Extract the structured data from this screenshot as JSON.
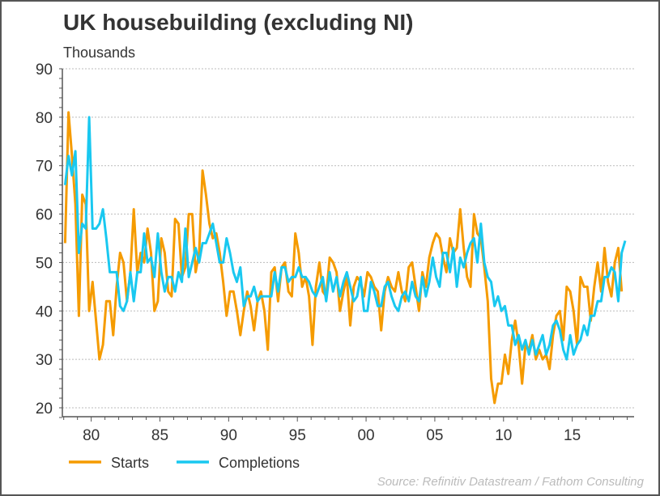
{
  "chart_data": {
    "type": "line",
    "title": "UK housebuilding (excluding NI)",
    "ylabel": "Thousands",
    "xlabel": "",
    "source": "Source: Refinitiv Datastream / Fathom Consulting",
    "ylim": [
      18,
      90
    ],
    "xlim": [
      1977.9,
      2019.5
    ],
    "yticks": [
      20,
      30,
      40,
      50,
      60,
      70,
      80,
      90
    ],
    "xticks": [
      {
        "value": 1980,
        "label": "80"
      },
      {
        "value": 1985,
        "label": "85"
      },
      {
        "value": 1990,
        "label": "90"
      },
      {
        "value": 1995,
        "label": "95"
      },
      {
        "value": 2000,
        "label": "00"
      },
      {
        "value": 2005,
        "label": "05"
      },
      {
        "value": 2010,
        "label": "10"
      },
      {
        "value": 2015,
        "label": "15"
      }
    ],
    "grid": "horizontal dotted",
    "legend_position": "bottom-left",
    "start": 1978.1,
    "frequency": "quarterly",
    "series": [
      {
        "name": "Starts",
        "color": "#f59b00",
        "values": [
          54,
          81,
          72,
          62,
          39,
          64,
          62,
          40,
          46,
          38,
          30,
          33,
          42,
          42,
          35,
          45,
          52,
          50,
          42,
          48,
          61,
          48,
          52,
          50,
          57,
          52,
          40,
          42,
          55,
          52,
          44,
          43,
          59,
          58,
          47,
          49,
          60,
          60,
          48,
          52,
          69,
          64,
          58,
          55,
          56,
          52,
          46,
          39,
          44,
          44,
          40,
          35,
          40,
          44,
          41,
          36,
          42,
          44,
          40,
          32,
          48,
          49,
          42,
          49,
          50,
          44,
          43,
          56,
          52,
          45,
          47,
          43,
          33,
          45,
          50,
          44,
          43,
          51,
          50,
          48,
          40,
          44,
          47,
          37,
          45,
          47,
          46,
          43,
          48,
          47,
          45,
          44,
          36,
          44,
          47,
          45,
          44,
          48,
          44,
          42,
          49,
          50,
          45,
          40,
          48,
          45,
          51,
          54,
          56,
          55,
          51,
          48,
          55,
          52,
          53,
          61,
          53,
          47,
          45,
          60,
          56,
          55,
          49,
          42,
          26,
          21,
          25,
          25,
          31,
          27,
          34,
          38,
          33,
          25,
          33,
          32,
          35,
          30,
          32,
          30,
          31,
          28,
          35,
          39,
          40,
          34,
          45,
          44,
          40,
          33,
          47,
          45,
          45,
          38,
          45,
          50,
          44,
          53,
          46,
          43,
          50,
          53,
          44
        ]
      },
      {
        "name": "Completions",
        "color": "#19c8f0",
        "values": [
          66,
          72,
          68,
          73,
          52,
          58,
          57,
          80,
          57,
          57,
          58,
          61,
          55,
          48,
          48,
          48,
          41,
          40,
          42,
          48,
          42,
          48,
          48,
          56,
          50,
          51,
          47,
          56,
          48,
          44,
          47,
          47,
          44,
          48,
          46,
          57,
          47,
          50,
          53,
          50,
          54,
          54,
          56,
          58,
          54,
          50,
          50,
          55,
          52,
          48,
          46,
          49,
          41,
          43,
          43,
          45,
          42,
          43,
          43,
          43,
          43,
          48,
          44,
          49,
          49,
          46,
          47,
          47,
          49,
          47,
          47,
          46,
          44,
          43,
          45,
          47,
          42,
          48,
          44,
          47,
          43,
          46,
          48,
          45,
          42,
          43,
          47,
          40,
          40,
          46,
          44,
          41,
          41,
          45,
          46,
          43,
          41,
          40,
          43,
          44,
          42,
          46,
          43,
          42,
          47,
          43,
          46,
          51,
          47,
          45,
          52,
          52,
          48,
          53,
          45,
          51,
          49,
          52,
          54,
          55,
          50,
          58,
          50,
          47,
          46,
          41,
          43,
          40,
          41,
          37,
          37,
          33,
          35,
          32,
          34,
          31,
          34,
          31,
          33,
          35,
          31,
          33,
          37,
          38,
          36,
          32,
          30,
          35,
          31,
          33,
          34,
          37,
          35,
          39,
          39,
          42,
          42,
          47,
          47,
          49,
          48,
          42,
          52,
          54.5
        ]
      }
    ]
  }
}
